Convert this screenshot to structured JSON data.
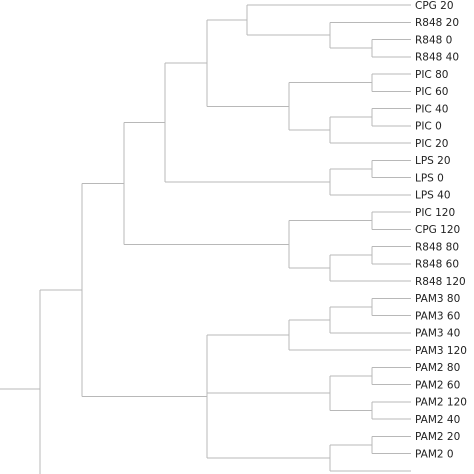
{
  "dendrogram": {
    "leaves": [
      "CPG 20",
      "R848 20",
      "R848 0",
      "R848 40",
      "PIC 80",
      "PIC 60",
      "PIC 40",
      "PIC 0",
      "PIC 20",
      "LPS 20",
      "LPS 0",
      "LPS 40",
      "PIC 120",
      "CPG 120",
      "R848 80",
      "R848 60",
      "R848 120",
      "PAM3 80",
      "PAM3 60",
      "PAM3 40",
      "PAM3 120",
      "PAM2 80",
      "PAM2 60",
      "PAM2 120",
      "PAM2 40",
      "PAM2 20",
      "PAM2 0"
    ],
    "colors": {
      "branch": "#b8b8b8",
      "label": "#222222",
      "background": "#ffffff"
    }
  }
}
